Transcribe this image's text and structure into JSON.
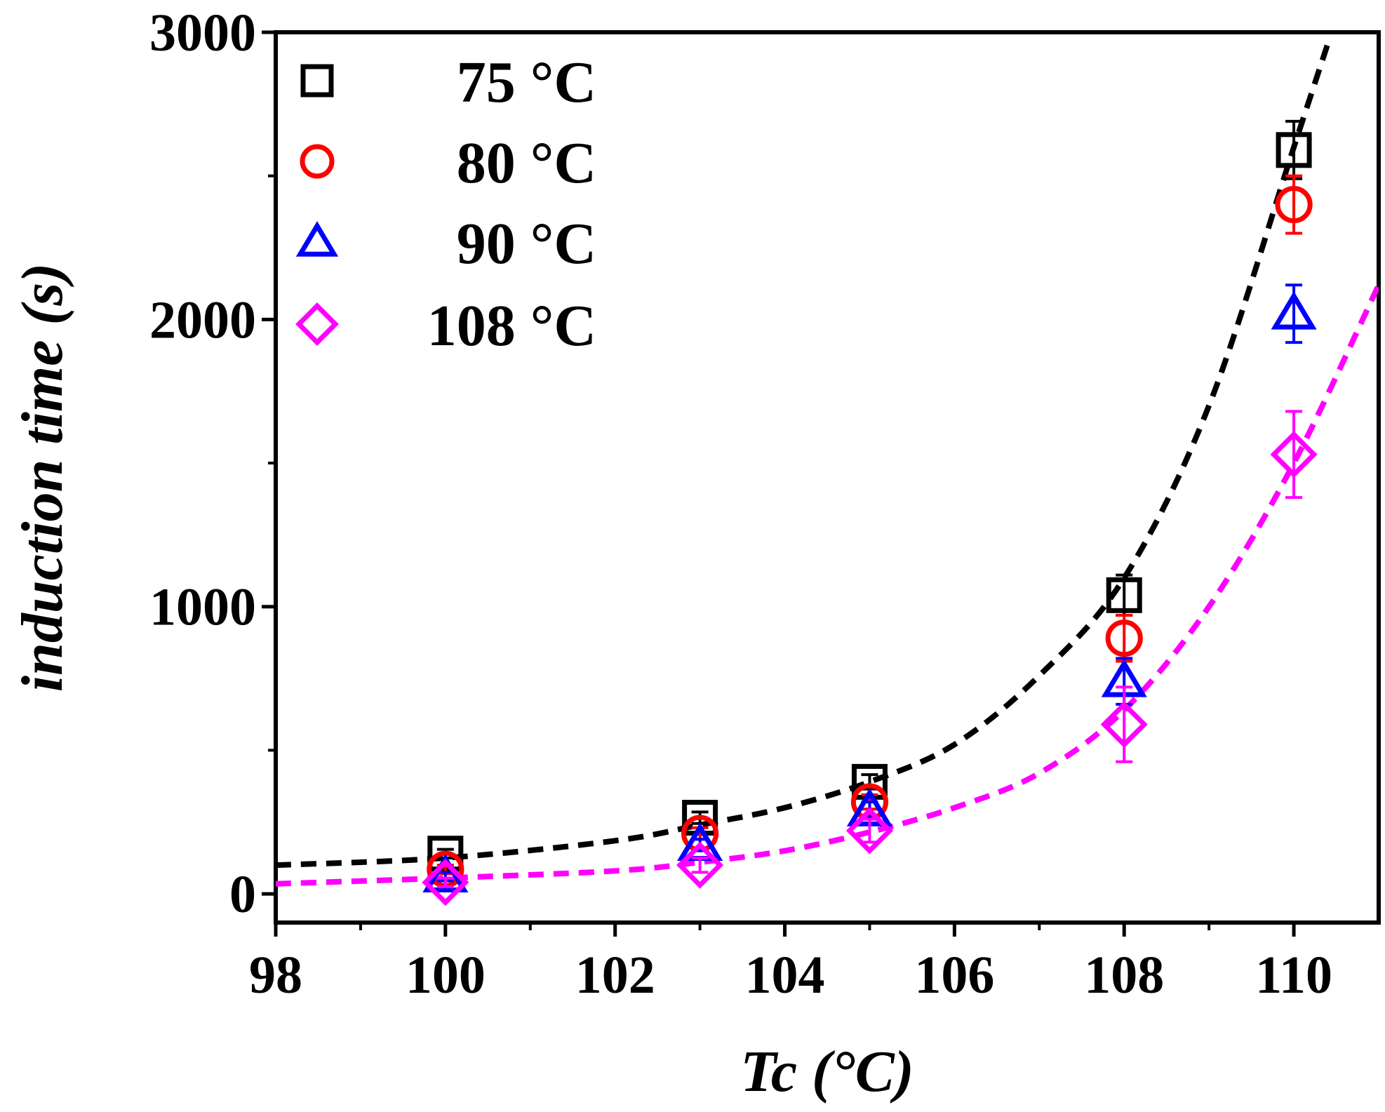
{
  "chart_data": {
    "type": "scatter",
    "title": "",
    "xlabel": "Tc (°C)",
    "ylabel": "induction time (s)",
    "xlim": [
      98,
      111
    ],
    "ylim": [
      -100,
      3000
    ],
    "x_ticks": [
      98,
      100,
      102,
      104,
      106,
      108,
      110
    ],
    "x_tick_labels": [
      "98",
      "100",
      "102",
      "104",
      "106",
      "108",
      "110"
    ],
    "y_ticks": [
      0,
      1000,
      2000,
      3000
    ],
    "y_tick_labels": [
      "0",
      "1000",
      "2000",
      "3000"
    ],
    "legend_position": "top-left",
    "series": [
      {
        "name": "75 °C",
        "marker": "square",
        "color": "#000000",
        "x": [
          100,
          103,
          105,
          108,
          110
        ],
        "y": [
          140,
          265,
          390,
          1040,
          2590
        ],
        "err": [
          15,
          20,
          25,
          70,
          100
        ]
      },
      {
        "name": "80 °C",
        "marker": "circle",
        "color": "#ff0000",
        "x": [
          100,
          103,
          105,
          108,
          110
        ],
        "y": [
          85,
          210,
          320,
          890,
          2400
        ],
        "err": [
          15,
          20,
          25,
          80,
          100
        ]
      },
      {
        "name": "90 °C",
        "marker": "triangle",
        "color": "#0000ff",
        "x": [
          100,
          103,
          105,
          108,
          110
        ],
        "y": [
          60,
          170,
          290,
          740,
          2020
        ],
        "err": [
          15,
          20,
          30,
          80,
          100
        ]
      },
      {
        "name": "108 °C",
        "marker": "diamond",
        "color": "#ff00ff",
        "x": [
          100,
          103,
          105,
          108,
          110
        ],
        "y": [
          40,
          100,
          220,
          590,
          1530
        ],
        "err": [
          15,
          25,
          40,
          130,
          150
        ]
      }
    ],
    "fit_curves": [
      {
        "color": "#000000",
        "x": [
          98,
          100,
          102,
          103,
          104,
          105,
          106,
          107,
          108,
          109,
          110,
          110.4
        ],
        "y": [
          100,
          125,
          185,
          240,
          300,
          390,
          520,
          760,
          1100,
          1700,
          2600,
          2960
        ]
      },
      {
        "color": "#ff00ff",
        "x": [
          98,
          100,
          102,
          103,
          104,
          105,
          106,
          107,
          108,
          109,
          110,
          111
        ],
        "y": [
          35,
          55,
          80,
          110,
          150,
          215,
          300,
          420,
          640,
          1000,
          1500,
          2120
        ]
      }
    ]
  }
}
